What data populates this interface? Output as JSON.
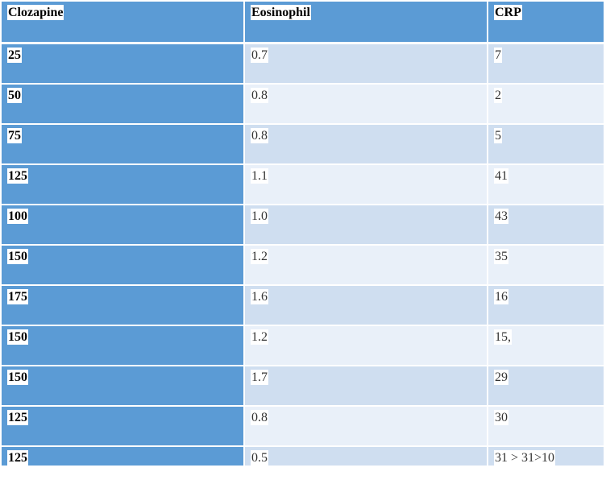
{
  "table": {
    "headers": [
      "Clozapine",
      "Eosinophil",
      "CRP"
    ],
    "rows": [
      [
        "25",
        "0.7",
        "7"
      ],
      [
        "50",
        "0.8",
        "2"
      ],
      [
        "75",
        "0.8",
        "5"
      ],
      [
        "125",
        "1.1",
        "41"
      ],
      [
        "100",
        "1.0",
        "43"
      ],
      [
        "150",
        "1.2",
        "35"
      ],
      [
        "175",
        "1.6",
        "16"
      ],
      [
        "150",
        "1.2",
        "15,"
      ],
      [
        "150",
        "1.7",
        "29"
      ],
      [
        "125",
        "0.8",
        "30"
      ],
      [
        "125",
        "0.5",
        "31 > 31>10"
      ]
    ]
  },
  "colors": {
    "header_fill": "#5b9bd5",
    "first_column_fill": "#5b9bd5",
    "band_dark": "#cfdef0",
    "band_light": "#e9f0f9"
  }
}
